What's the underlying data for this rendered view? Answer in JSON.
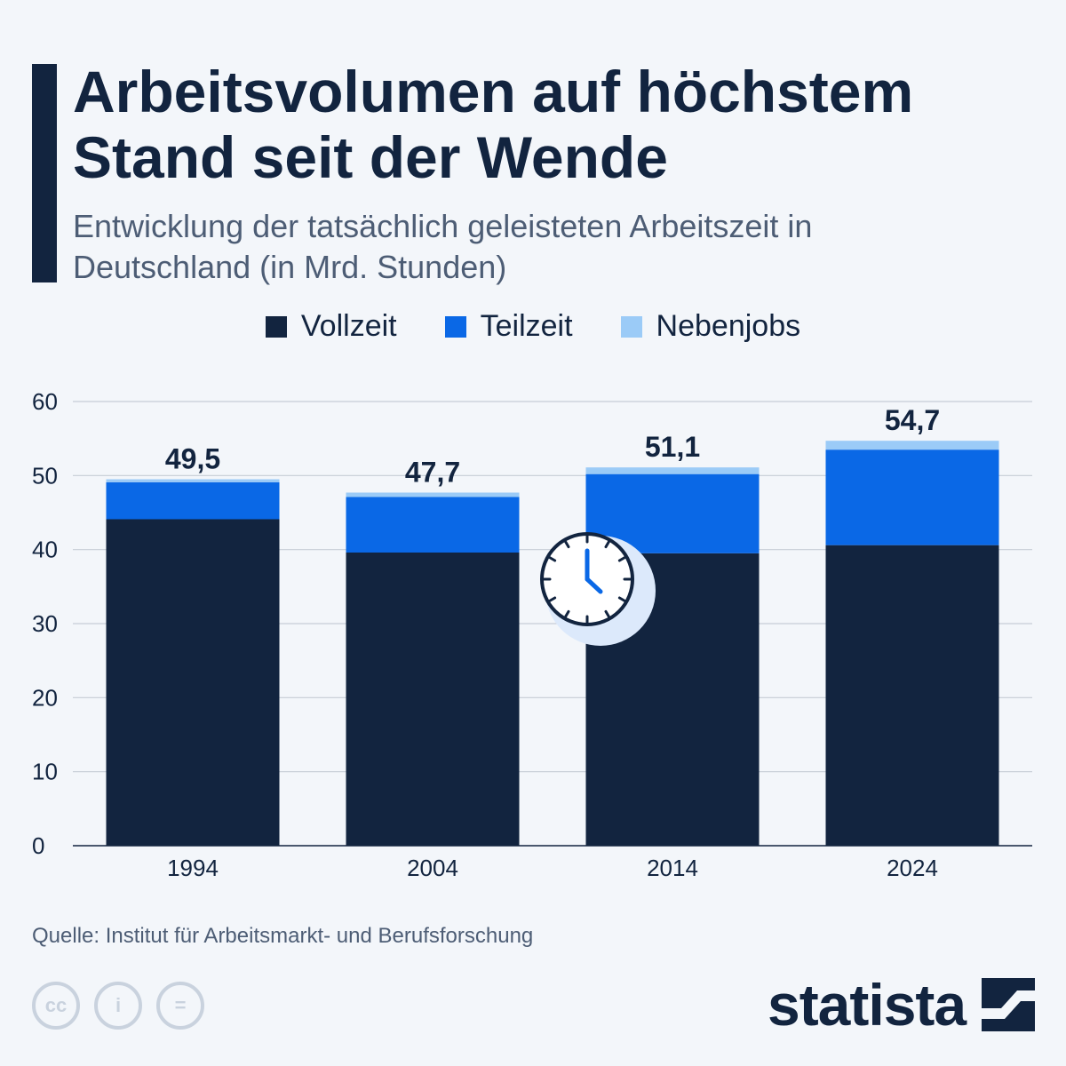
{
  "header": {
    "title": "Arbeitsvolumen auf höchstem Stand seit der Wende",
    "subtitle": "Entwicklung der tatsächlich geleisteten Arbeitszeit in Deutschland (in Mrd. Stunden)"
  },
  "chart_data": {
    "type": "bar",
    "stacked": true,
    "title": "Arbeitsvolumen auf höchstem Stand seit der Wende",
    "subtitle": "Entwicklung der tatsächlich geleisteten Arbeitszeit in Deutschland (in Mrd. Stunden)",
    "categories": [
      "1994",
      "2004",
      "2014",
      "2024"
    ],
    "series": [
      {
        "name": "Vollzeit",
        "color": "#12243f",
        "values": [
          44.1,
          39.6,
          39.5,
          40.6
        ]
      },
      {
        "name": "Teilzeit",
        "color": "#0a68e6",
        "values": [
          5.0,
          7.5,
          10.7,
          12.9
        ]
      },
      {
        "name": "Nebenjobs",
        "color": "#9bcbf7",
        "values": [
          0.4,
          0.6,
          0.9,
          1.2
        ]
      }
    ],
    "totals": [
      49.5,
      47.7,
      51.1,
      54.7
    ],
    "total_labels": [
      "49,5",
      "47,7",
      "51,1",
      "54,7"
    ],
    "yticks": [
      0,
      10,
      20,
      30,
      40,
      50,
      60
    ],
    "ylim": [
      0,
      60
    ],
    "xlabel": "",
    "ylabel": "",
    "grid": true,
    "legend_position": "top-center"
  },
  "legend": {
    "items": [
      {
        "label": "Vollzeit",
        "color": "#12243f"
      },
      {
        "label": "Teilzeit",
        "color": "#0a68e6"
      },
      {
        "label": "Nebenjobs",
        "color": "#9bcbf7"
      }
    ]
  },
  "decoration": {
    "icon": "clock-icon"
  },
  "footer": {
    "source": "Quelle: Institut für Arbeitsmarkt- und Berufsforschung",
    "cc_icons": [
      {
        "name": "cc-icon",
        "glyph": "cc"
      },
      {
        "name": "by-icon",
        "glyph": "i"
      },
      {
        "name": "nd-icon",
        "glyph": "="
      }
    ],
    "brand": "statista",
    "brand_icon": "statista-logo-icon"
  }
}
